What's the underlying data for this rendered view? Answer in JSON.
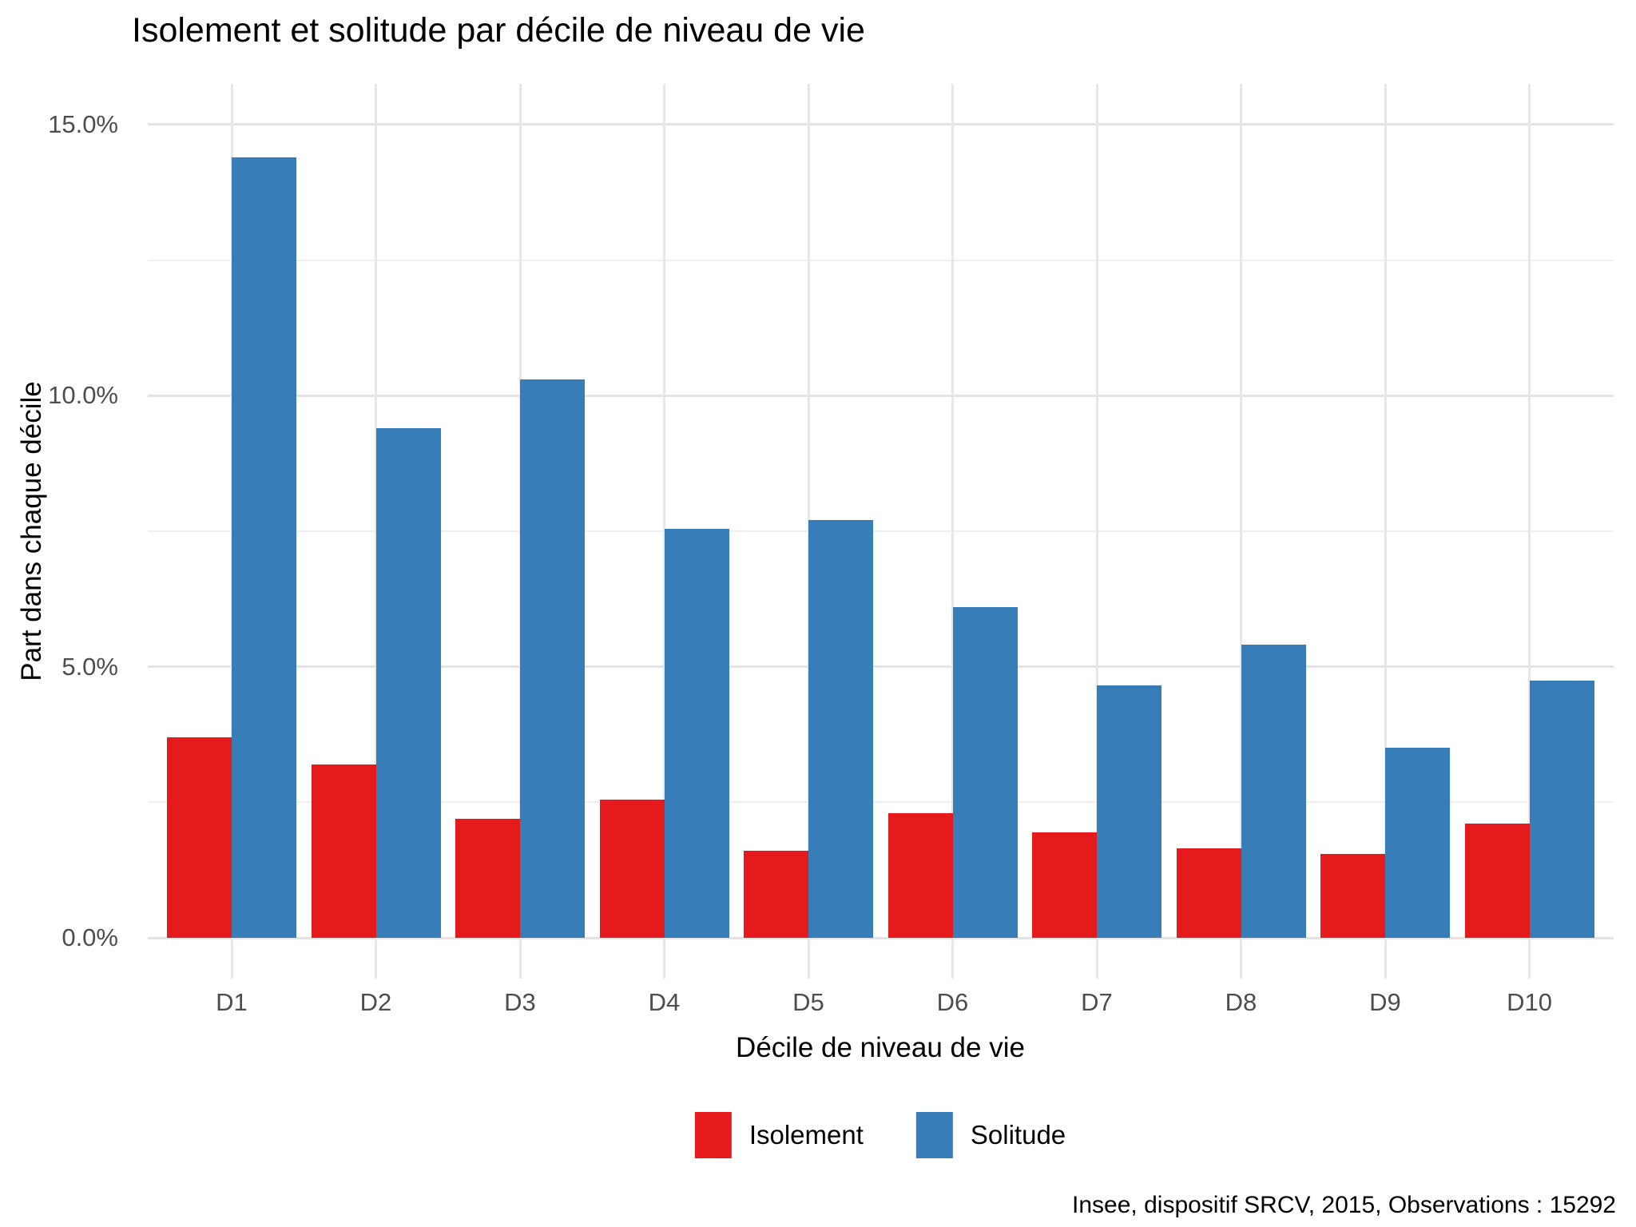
{
  "chart_data": {
    "type": "bar",
    "title": "Isolement et solitude par décile de niveau de vie",
    "xlabel": "Décile de niveau de vie",
    "ylabel": "Part dans chaque décile",
    "caption": "Insee, dispositif SRCV, 2015, Observations : 15292",
    "categories": [
      "D1",
      "D2",
      "D3",
      "D4",
      "D5",
      "D6",
      "D7",
      "D8",
      "D9",
      "D10"
    ],
    "series": [
      {
        "name": "Isolement",
        "color": "#E41A1C",
        "values": [
          3.7,
          3.2,
          2.2,
          2.55,
          1.6,
          2.3,
          1.95,
          1.65,
          1.55,
          2.1
        ]
      },
      {
        "name": "Solitude",
        "color": "#377EB8",
        "values": [
          14.4,
          9.4,
          10.3,
          7.55,
          7.7,
          6.1,
          4.65,
          5.4,
          3.5,
          4.75
        ]
      }
    ],
    "ylim": [
      0,
      15
    ],
    "y_tick_values": [
      0,
      5,
      10,
      15
    ],
    "y_tick_labels": [
      "0.0%",
      "5.0%",
      "10.0%",
      "15.0%"
    ],
    "minor_gridline_values": [
      2.5,
      7.5,
      12.5
    ],
    "grid": "on",
    "legend_position": "bottom",
    "colors": {
      "isolement": "#E41A1C",
      "solitude": "#377EB8",
      "axis_text": "#4d4d4d",
      "text": "#000000",
      "grid_major": "#e3e3e3",
      "grid_minor": "#efefef",
      "background": "#ffffff"
    }
  }
}
